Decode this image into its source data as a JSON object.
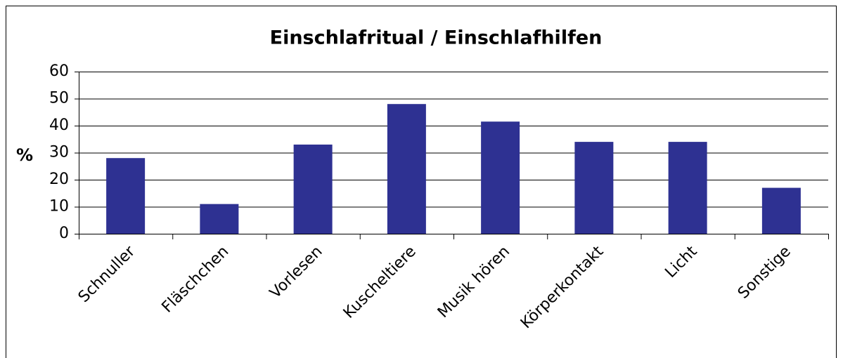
{
  "chart_data": {
    "type": "bar",
    "title": "Einschlafritual / Einschlafhilfen",
    "y_label": "%",
    "categories": [
      "Schnuller",
      "Fläschchen",
      "Vorlesen",
      "Kuscheltiere",
      "Musik hören",
      "Körperkontakt",
      "Licht",
      "Sonstige"
    ],
    "values": [
      28,
      11,
      33,
      48,
      41.5,
      34,
      34,
      17
    ],
    "color": "#2e3192",
    "ylim": [
      0,
      60
    ],
    "yticks": [
      0,
      10,
      20,
      30,
      40,
      50,
      60
    ],
    "grid": true
  }
}
